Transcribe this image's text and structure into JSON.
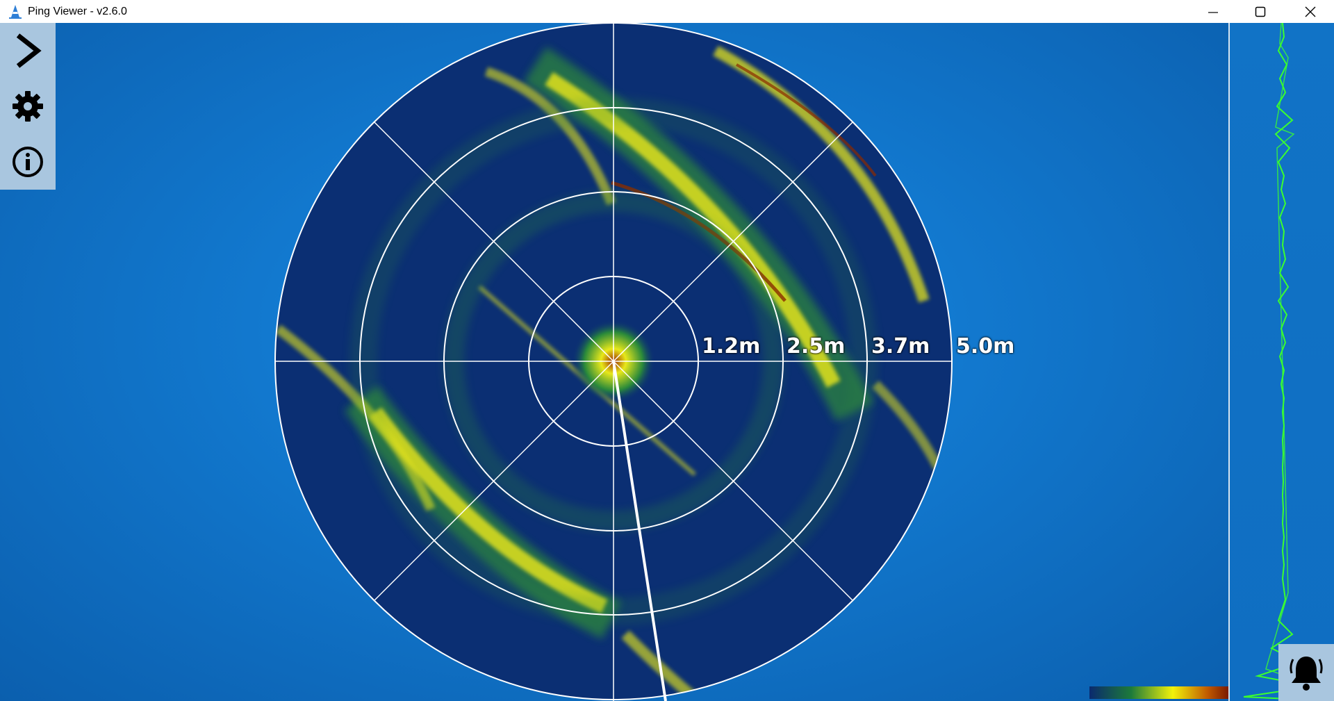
{
  "window": {
    "title": "Ping Viewer - v2.6.0",
    "icon": "ping-cone-icon",
    "controls": [
      "minimize-icon",
      "maximize-icon",
      "close-icon"
    ]
  },
  "toolbar": {
    "items": [
      {
        "name": "expand-menu",
        "icon": "chevron-right-icon"
      },
      {
        "name": "settings",
        "icon": "gear-icon"
      },
      {
        "name": "info",
        "icon": "info-icon"
      }
    ]
  },
  "sonar": {
    "range_labels": [
      "1.2m",
      "2.5m",
      "3.7m",
      "5.0m"
    ],
    "palette": {
      "background": "#0b2f73",
      "grid": "#ffffff",
      "low": "#1d7a3a",
      "mid": "#e8e81a",
      "high": "#7a1a00"
    },
    "heading_indicator": "heading-line"
  },
  "alerts": {
    "icon": "bell-icon"
  },
  "colorbar": {
    "stops": [
      "#0a2a6e",
      "#1d7a3a",
      "#f2f20a",
      "#c05a00",
      "#7a1a00"
    ]
  }
}
